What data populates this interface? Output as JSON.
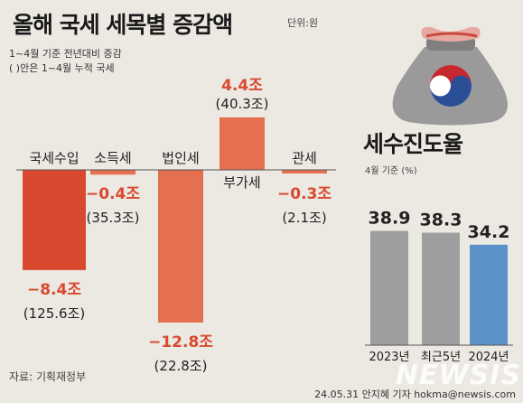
{
  "header": {
    "title": "올해 국세 세목별 증감액",
    "unit": "단위:원",
    "note1": "1~4월 기준 전년대비 증감",
    "note2": "( )안은 1~4월 누적 국세"
  },
  "footer": {
    "source": "자료: 기획재정부",
    "credit": "24.05.31 안지혜 기자 hokma@newsis.com",
    "watermark": "NEWSIS"
  },
  "colors": {
    "bar_main": "#d9492f",
    "bar_light": "#e4704f",
    "bar_gray": "#9e9e9e",
    "bar_blue": "#5b93c9",
    "value_text": "#d9492f",
    "rate_value_text": "#222222",
    "bag": "#9a9a9a"
  },
  "chart_data": [
    {
      "type": "bar",
      "title": "올해 국세 세목별 증감액",
      "unit": "조",
      "categories": [
        "국세수입",
        "소득세",
        "법인세",
        "부가세",
        "관세"
      ],
      "values": [
        -8.4,
        -0.4,
        -12.8,
        4.4,
        -0.3
      ],
      "value_labels": [
        "−8.4조",
        "−0.4조",
        "−12.8조",
        "4.4조",
        "−0.3조"
      ],
      "cumulative": [
        125.6,
        35.3,
        22.8,
        40.3,
        2.1
      ],
      "cumulative_labels": [
        "(125.6조)",
        "(35.3조)",
        "(22.8조)",
        "(40.3조)",
        "(2.1조)"
      ]
    },
    {
      "type": "bar",
      "title": "세수진도율",
      "subtitle": "4월 기준 (%)",
      "categories": [
        "2023년",
        "최근5년",
        "2024년"
      ],
      "values": [
        38.9,
        38.3,
        34.2
      ],
      "value_labels": [
        "38.9",
        "38.3",
        "34.2"
      ]
    }
  ]
}
